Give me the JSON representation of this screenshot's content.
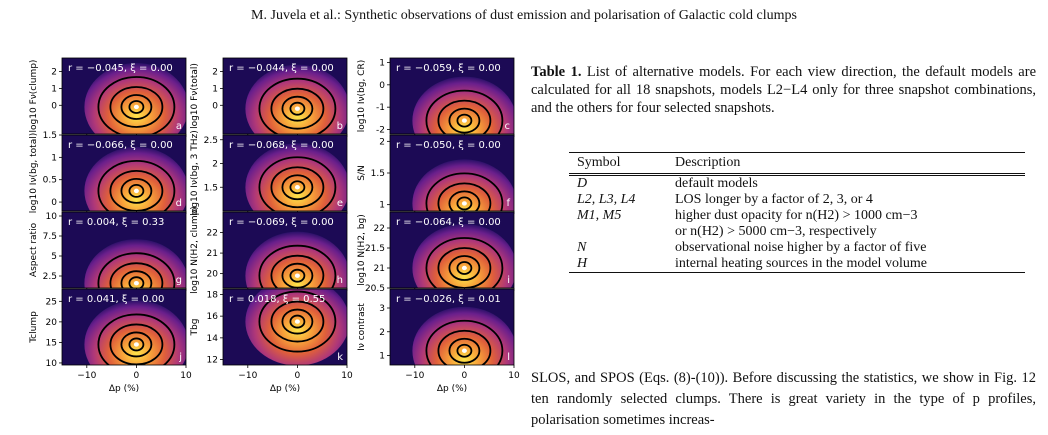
{
  "running_head": "M. Juvela et al.: Synthetic observations of dust emission and polarisation of Galactic cold clumps",
  "table": {
    "caption_label": "Table 1.",
    "caption_text": " List of alternative models. For each view direction, the default models are calculated for all 18 snapshots, models L2−L4 only for three snapshot combinations, and the others for four selected snapshots.",
    "header_symbol": "Symbol",
    "header_description": "Description",
    "rows": [
      {
        "symbol": "D",
        "description": "default models"
      },
      {
        "symbol": "L2, L3, L4",
        "description": "LOS longer by a factor of 2, 3, or 4"
      },
      {
        "symbol": "M1, M5",
        "description": "higher dust opacity for n(H2) > 1000 cm−3"
      },
      {
        "symbol": "",
        "description": "or n(H2) > 5000 cm−3, respectively"
      },
      {
        "symbol": "N",
        "description": "observational noise higher by a factor of five"
      },
      {
        "symbol": "H",
        "description": "internal heating sources in the model volume"
      }
    ]
  },
  "body_text": "SLOS, and SPOS (Eqs. (8)-(10)). Before discussing the statistics, we show in Fig. 12 ten randomly selected clumps. There is great variety in the type of p profiles, polarisation sometimes increas-",
  "chart_data": {
    "type": "heatmap",
    "description_colormap": "plasma-like density with black contours",
    "xlabel": "Δp (%)",
    "xlim": [
      -15,
      10
    ],
    "xticks": [
      -10,
      0,
      10
    ],
    "panels": [
      {
        "id": "a",
        "ylabel": "log10 Fν(clump)",
        "annotation": "r = −0.045, ξ = 0.00",
        "ylim": [
          -1.7,
          2.8
        ],
        "yticks": [
          0,
          1,
          2
        ],
        "peak": [
          0,
          -0.1
        ]
      },
      {
        "id": "b",
        "ylabel": "log10 Fν(total)",
        "annotation": "r = −0.044, ξ = 0.00",
        "ylim": [
          -1.7,
          2.8
        ],
        "yticks": [
          0,
          1,
          2
        ],
        "peak": [
          0,
          -0.2
        ]
      },
      {
        "id": "c",
        "ylabel": "log10 Iν(bg, CR)",
        "annotation": "r = −0.059, ξ = 0.00",
        "ylim": [
          -2.2,
          1.2
        ],
        "yticks": [
          -2,
          -1,
          0,
          1
        ],
        "peak": [
          0,
          -1.6
        ]
      },
      {
        "id": "d",
        "ylabel": "log10 Iν(bg, total)",
        "annotation": "r = −0.066, ξ = 0.00",
        "ylim": [
          -0.2,
          1.5
        ],
        "yticks": [
          0.0,
          0.5,
          1.0,
          1.5
        ],
        "peak": [
          0,
          0.25
        ]
      },
      {
        "id": "e",
        "ylabel": "log10 Iν(bg, 3 THz)",
        "annotation": "r = −0.068, ξ = 0.00",
        "ylim": [
          1.0,
          2.6
        ],
        "yticks": [
          1.5,
          2.0,
          2.5
        ],
        "peak": [
          0,
          1.5
        ]
      },
      {
        "id": "f",
        "ylabel": "S/N",
        "annotation": "r = −0.050, ξ = 0.00",
        "ylim": [
          0.9,
          2.1
        ],
        "yticks": [
          1.0,
          1.5,
          2.0
        ],
        "peak": [
          0,
          1.02
        ]
      },
      {
        "id": "g",
        "ylabel": "Aspect ratio",
        "annotation": "r = 0.004, ξ = 0.33",
        "ylim": [
          1,
          10.5
        ],
        "yticks": [
          2.5,
          5.0,
          7.5,
          10.0
        ],
        "peak": [
          0,
          1.6
        ]
      },
      {
        "id": "h",
        "ylabel": "log10 N(H2, clump)",
        "annotation": "r = −0.069, ξ = 0.00",
        "ylim": [
          19.3,
          23
        ],
        "yticks": [
          20,
          21,
          22
        ],
        "peak": [
          0,
          19.9
        ]
      },
      {
        "id": "i",
        "ylabel": "log10 N(H2, bg)",
        "annotation": "r = −0.064, ξ = 0.00",
        "ylim": [
          20.5,
          22.4
        ],
        "yticks": [
          20.5,
          21.0,
          21.5,
          22.0
        ],
        "peak": [
          0,
          21.0
        ]
      },
      {
        "id": "j",
        "ylabel": "Tclump",
        "annotation": "r = 0.041, ξ = 0.00",
        "ylim": [
          9.5,
          28
        ],
        "yticks": [
          10,
          15,
          20,
          25
        ],
        "peak": [
          0,
          14.5
        ]
      },
      {
        "id": "k",
        "ylabel": "Tbg",
        "annotation": "r = 0.018, ξ = 0.55",
        "ylim": [
          11.5,
          18.5
        ],
        "yticks": [
          12,
          14,
          16,
          18
        ],
        "peak": [
          0,
          15.5
        ]
      },
      {
        "id": "l",
        "ylabel": "Iν contrast",
        "annotation": "r = −0.026, ξ = 0.01",
        "ylim": [
          0.6,
          3.8
        ],
        "yticks": [
          1,
          2,
          3
        ],
        "peak": [
          0,
          1.2
        ]
      }
    ]
  }
}
